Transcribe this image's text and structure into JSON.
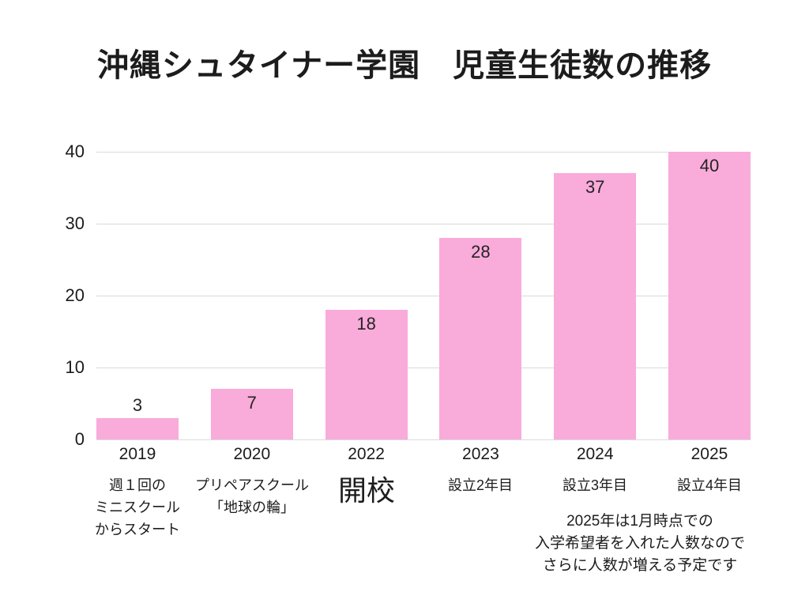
{
  "title": "沖縄シュタイナー学園　児童生徒数の推移",
  "chart_data": {
    "type": "bar",
    "title": "沖縄シュタイナー学園　児童生徒数の推移",
    "categories": [
      "2019",
      "2020",
      "2022",
      "2023",
      "2024",
      "2025"
    ],
    "values": [
      3,
      7,
      18,
      28,
      37,
      40
    ],
    "xlabel": "",
    "ylabel": "",
    "ylim": [
      0,
      40
    ],
    "yticks": [
      0,
      10,
      20,
      30,
      40
    ],
    "ytick_labels_top_to_bottom": [
      "40",
      "30",
      "20",
      "10",
      "0"
    ],
    "grid": true,
    "legend": false,
    "category_notes": [
      {
        "lines": [
          "週１回の",
          "ミニスクール",
          "からスタート"
        ],
        "emphasis": false
      },
      {
        "lines": [
          "プリペアスクール",
          "「地球の輪」"
        ],
        "emphasis": false
      },
      {
        "lines": [
          "開校"
        ],
        "emphasis": true
      },
      {
        "lines": [
          "設立2年目"
        ],
        "emphasis": false
      },
      {
        "lines": [
          "設立3年目"
        ],
        "emphasis": false
      },
      {
        "lines": [
          "設立4年目"
        ],
        "emphasis": false
      }
    ],
    "footnote_lines": [
      "2025年は1月時点での",
      "入学希望者を入れた人数なので",
      "さらに人数が増える予定です"
    ]
  },
  "colors": {
    "bar": "#f9abda",
    "grid": "#dadada",
    "text": "#1c1c1c",
    "background": "#ffffff"
  }
}
